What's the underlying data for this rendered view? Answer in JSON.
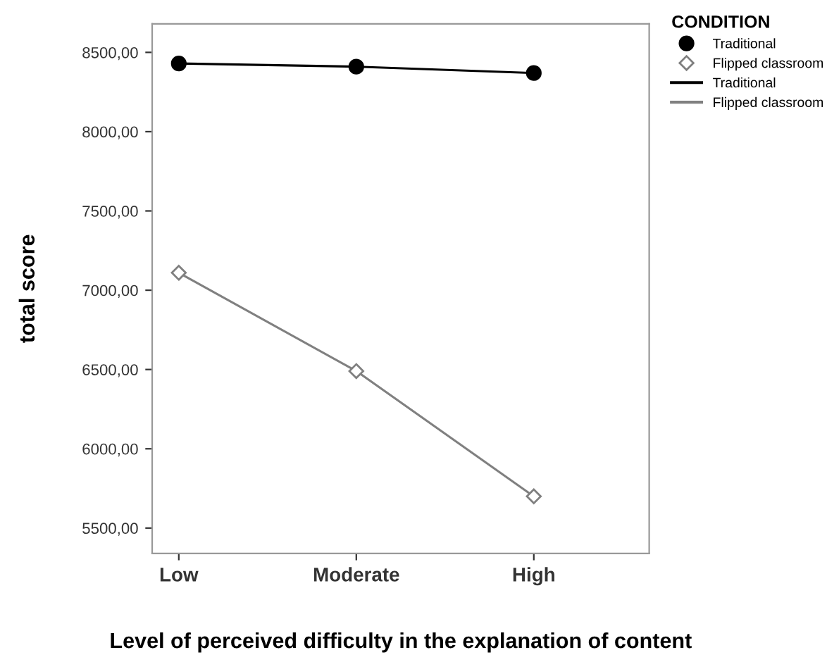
{
  "chart_data": {
    "type": "line",
    "xlabel": "Level of perceived difficulty in the explanation of content",
    "ylabel": "total score",
    "legend_title": "CONDITION",
    "categories": [
      "Low",
      "Moderate",
      "High"
    ],
    "series": [
      {
        "name": "Traditional",
        "color": "#000000",
        "marker": "circle",
        "values": [
          8430,
          8410,
          8370
        ]
      },
      {
        "name": "Flipped classroom",
        "color": "#808080",
        "marker": "diamond",
        "values": [
          7110,
          6490,
          5700
        ]
      }
    ],
    "ylim": [
      5340,
      8680
    ],
    "yticks": [
      {
        "value": 5500,
        "label": "5500,00"
      },
      {
        "value": 6000,
        "label": "6000,00"
      },
      {
        "value": 6500,
        "label": "6500,00"
      },
      {
        "value": 7000,
        "label": "7000,00"
      },
      {
        "value": 7500,
        "label": "7500,00"
      },
      {
        "value": 8000,
        "label": "8000,00"
      },
      {
        "value": 8500,
        "label": "8500,00"
      }
    ],
    "grid": false,
    "legend": "top right",
    "line_style": "solid"
  }
}
